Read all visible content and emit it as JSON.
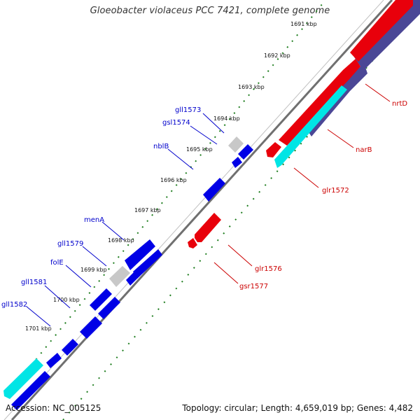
{
  "title": "Gloeobacter violaceus PCC 7421, complete genome",
  "footer": {
    "accession": "Accession: NC_005125",
    "summary": "Topology: circular; Length: 4,659,019 bp; Genes: 4,482"
  },
  "ticks": [
    "1691 kbp",
    "1692 kbp",
    "1693 kbp",
    "1694 kbp",
    "1695 kbp",
    "1696 kbp",
    "1697 kbp",
    "1698 kbp",
    "1699 kbp",
    "1700 kbp",
    "1701 kbp"
  ],
  "colors": {
    "forward": "#e8000b",
    "reverse": "#0000e6",
    "rna": "#00e5e5",
    "other": "#c8c8c8",
    "overlap": "#4b4796",
    "backbone": "#707070",
    "tick": "#1e7d1e",
    "label_forward": "#cc0000",
    "label_reverse": "#0000cc"
  },
  "labels_forward": [
    "nrtD",
    "narB",
    "glr1572",
    "glr1576",
    "gsr1577"
  ],
  "labels_reverse": [
    "gll1573",
    "gsl1574",
    "nblB",
    "menA",
    "gll1579",
    "folE",
    "gll1581",
    "gll1582"
  ]
}
